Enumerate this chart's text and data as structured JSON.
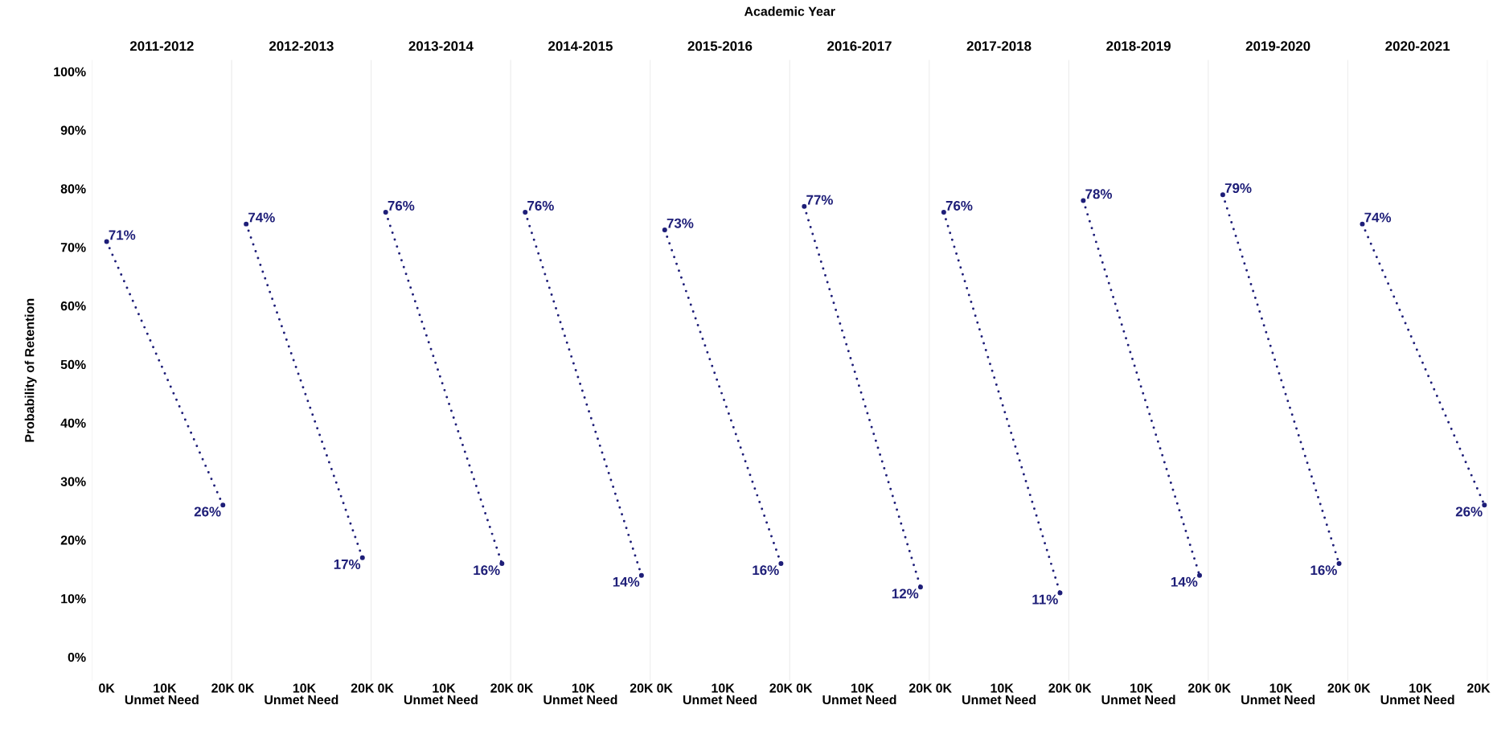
{
  "chart_data": [
    {
      "type": "line",
      "title": "2011-2012",
      "xlabel": "Unmet Need",
      "ylabel": "Probability of Retention",
      "annotations": [
        "Academic Year"
      ],
      "line_style": "dotted",
      "marker": "circle",
      "x": [
        0,
        20000
      ],
      "xlim": [
        -2500,
        21500
      ],
      "ylim": [
        -4,
        102
      ],
      "xticks": [
        {
          "value": 0,
          "label": "0K"
        },
        {
          "value": 10000,
          "label": "10K"
        },
        {
          "value": 20000,
          "label": "20K"
        }
      ],
      "yticks": [
        {
          "value": 0,
          "label": "0%"
        },
        {
          "value": 10,
          "label": "10%"
        },
        {
          "value": 20,
          "label": "20%"
        },
        {
          "value": 30,
          "label": "30%"
        },
        {
          "value": 40,
          "label": "40%"
        },
        {
          "value": 50,
          "label": "50%"
        },
        {
          "value": 60,
          "label": "60%"
        },
        {
          "value": 70,
          "label": "70%"
        },
        {
          "value": 80,
          "label": "80%"
        },
        {
          "value": 90,
          "label": "90%"
        },
        {
          "value": 100,
          "label": "100%"
        }
      ],
      "series": [
        {
          "color": "#1e1e78",
          "values": [
            71,
            26
          ],
          "value_labels": [
            "71%",
            "26%"
          ]
        }
      ]
    },
    {
      "type": "line",
      "title": "2012-2013",
      "xlabel": "Unmet Need",
      "tick_labels": "x",
      "line_style": "dotted",
      "marker": "circle",
      "x": [
        0,
        20000
      ],
      "xlim": [
        -2500,
        21500
      ],
      "ylim": [
        -4,
        102
      ],
      "xticks": [
        {
          "value": 0,
          "label": "0K"
        },
        {
          "value": 10000,
          "label": "10K"
        },
        {
          "value": 20000,
          "label": "20K"
        }
      ],
      "series": [
        {
          "color": "#1e1e78",
          "values": [
            74,
            17
          ],
          "value_labels": [
            "74%",
            "17%"
          ]
        }
      ]
    },
    {
      "type": "line",
      "title": "2013-2014",
      "xlabel": "Unmet Need",
      "tick_labels": "x",
      "line_style": "dotted",
      "marker": "circle",
      "x": [
        0,
        20000
      ],
      "xlim": [
        -2500,
        21500
      ],
      "ylim": [
        -4,
        102
      ],
      "xticks": [
        {
          "value": 0,
          "label": "0K"
        },
        {
          "value": 10000,
          "label": "10K"
        },
        {
          "value": 20000,
          "label": "20K"
        }
      ],
      "series": [
        {
          "color": "#1e1e78",
          "values": [
            76,
            16
          ],
          "value_labels": [
            "76%",
            "16%"
          ]
        }
      ]
    },
    {
      "type": "line",
      "title": "2014-2015",
      "xlabel": "Unmet Need",
      "tick_labels": "x",
      "line_style": "dotted",
      "marker": "circle",
      "x": [
        0,
        20000
      ],
      "xlim": [
        -2500,
        21500
      ],
      "ylim": [
        -4,
        102
      ],
      "xticks": [
        {
          "value": 0,
          "label": "0K"
        },
        {
          "value": 10000,
          "label": "10K"
        },
        {
          "value": 20000,
          "label": "20K"
        }
      ],
      "series": [
        {
          "color": "#1e1e78",
          "values": [
            76,
            14
          ],
          "value_labels": [
            "76%",
            "14%"
          ]
        }
      ]
    },
    {
      "type": "line",
      "title": "2015-2016",
      "xlabel": "Unmet Need",
      "tick_labels": "x",
      "line_style": "dotted",
      "marker": "circle",
      "x": [
        0,
        20000
      ],
      "xlim": [
        -2500,
        21500
      ],
      "ylim": [
        -4,
        102
      ],
      "xticks": [
        {
          "value": 0,
          "label": "0K"
        },
        {
          "value": 10000,
          "label": "10K"
        },
        {
          "value": 20000,
          "label": "20K"
        }
      ],
      "series": [
        {
          "color": "#1e1e78",
          "values": [
            73,
            16
          ],
          "value_labels": [
            "73%",
            "16%"
          ]
        }
      ]
    },
    {
      "type": "line",
      "title": "2016-2017",
      "xlabel": "Unmet Need",
      "tick_labels": "x",
      "line_style": "dotted",
      "marker": "circle",
      "x": [
        0,
        20000
      ],
      "xlim": [
        -2500,
        21500
      ],
      "ylim": [
        -4,
        102
      ],
      "xticks": [
        {
          "value": 0,
          "label": "0K"
        },
        {
          "value": 10000,
          "label": "10K"
        },
        {
          "value": 20000,
          "label": "20K"
        }
      ],
      "series": [
        {
          "color": "#1e1e78",
          "values": [
            77,
            12
          ],
          "value_labels": [
            "77%",
            "12%"
          ]
        }
      ]
    },
    {
      "type": "line",
      "title": "2017-2018",
      "xlabel": "Unmet Need",
      "tick_labels": "x",
      "line_style": "dotted",
      "marker": "circle",
      "x": [
        0,
        20000
      ],
      "xlim": [
        -2500,
        21500
      ],
      "ylim": [
        -4,
        102
      ],
      "xticks": [
        {
          "value": 0,
          "label": "0K"
        },
        {
          "value": 10000,
          "label": "10K"
        },
        {
          "value": 20000,
          "label": "20K"
        }
      ],
      "series": [
        {
          "color": "#1e1e78",
          "values": [
            76,
            11
          ],
          "value_labels": [
            "76%",
            "11%"
          ]
        }
      ]
    },
    {
      "type": "line",
      "title": "2018-2019",
      "xlabel": "Unmet Need",
      "tick_labels": "x",
      "line_style": "dotted",
      "marker": "circle",
      "x": [
        0,
        20000
      ],
      "xlim": [
        -2500,
        21500
      ],
      "ylim": [
        -4,
        102
      ],
      "xticks": [
        {
          "value": 0,
          "label": "0K"
        },
        {
          "value": 10000,
          "label": "10K"
        },
        {
          "value": 20000,
          "label": "20K"
        }
      ],
      "series": [
        {
          "color": "#1e1e78",
          "values": [
            78,
            14
          ],
          "value_labels": [
            "78%",
            "14%"
          ]
        }
      ]
    },
    {
      "type": "line",
      "title": "2019-2020",
      "xlabel": "Unmet Need",
      "tick_labels": "x",
      "line_style": "dotted",
      "marker": "circle",
      "x": [
        0,
        20000
      ],
      "xlim": [
        -2500,
        21500
      ],
      "ylim": [
        -4,
        102
      ],
      "xticks": [
        {
          "value": 0,
          "label": "0K"
        },
        {
          "value": 10000,
          "label": "10K"
        },
        {
          "value": 20000,
          "label": "20K"
        }
      ],
      "series": [
        {
          "color": "#1e1e78",
          "values": [
            79,
            16
          ],
          "value_labels": [
            "79%",
            "16%"
          ]
        }
      ]
    },
    {
      "type": "line",
      "title": "2020-2021",
      "xlabel": "Unmet Need",
      "tick_labels": "x",
      "line_style": "dotted",
      "marker": "circle",
      "x": [
        0,
        21000
      ],
      "xlim": [
        -2500,
        21500
      ],
      "ylim": [
        -4,
        102
      ],
      "xticks": [
        {
          "value": 0,
          "label": "0K"
        },
        {
          "value": 10000,
          "label": "10K"
        },
        {
          "value": 20000,
          "label": "20K"
        }
      ],
      "series": [
        {
          "color": "#1e1e78",
          "values": [
            74,
            26
          ],
          "value_labels": [
            "74%",
            "26%"
          ]
        }
      ]
    }
  ]
}
